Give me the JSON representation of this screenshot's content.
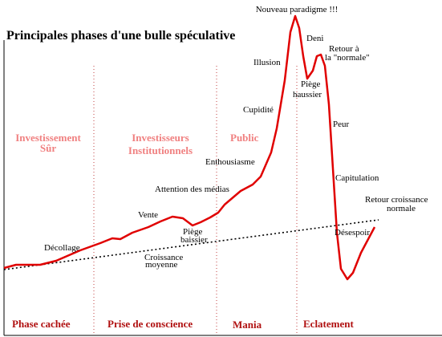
{
  "title": "Principales phases d'une bulle spéculative",
  "annotations": [
    "Nouveau paradigme !!!",
    "Deni",
    "Retour  à",
    "la \"normale\"",
    "Illusion",
    "Piège",
    "haussier",
    "Cupidité",
    "Peur",
    "Enthousiasme",
    "Capitulation",
    "Retour croissance",
    "normale",
    "Attention des médias",
    "Vente",
    "Piège",
    "baissier",
    "Désespoir",
    "Décollage",
    "Croissance",
    "moyenne"
  ],
  "zones": [
    "Investissement",
    "Sûr",
    "Investisseurs",
    "Institutionnels",
    "Public"
  ],
  "phases": [
    "Phase cachée",
    "Prise de conscience",
    "Mania",
    "Eclatement"
  ]
}
